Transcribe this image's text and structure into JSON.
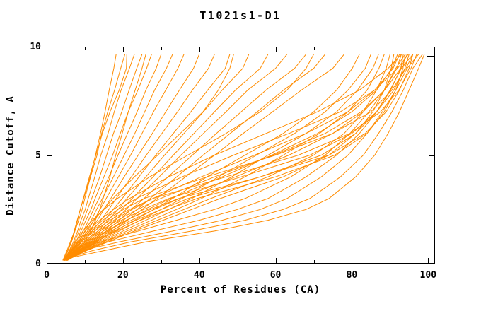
{
  "chart_data": {
    "type": "line",
    "title": "T1021s1-D1",
    "grid": false,
    "background": "#ffffff",
    "colors": {
      "curve": "#ff8c00",
      "axis": "#000000",
      "text": "#000000"
    },
    "legend": {
      "visible": true,
      "position": "top-right",
      "entries": []
    },
    "x_axis": {
      "label": "Percent of Residues (CA)",
      "range": [
        0,
        101.8
      ],
      "ticks": [
        0,
        20,
        40,
        60,
        80,
        100
      ],
      "minor_ticks": [
        10,
        30,
        50,
        70,
        90
      ]
    },
    "y_axis": {
      "label": "Distance Cutoff, A",
      "range": [
        0,
        10
      ],
      "ticks": [
        0,
        5,
        10
      ],
      "minor_ticks": [
        1,
        2,
        3,
        4,
        6,
        7,
        8,
        9
      ]
    },
    "series_count": 44,
    "y_checkpoints": [
      0.15,
      0.3,
      0.6,
      1,
      1.5,
      2,
      2.5,
      3,
      4,
      5,
      6,
      7,
      8,
      9,
      9.65
    ],
    "curves": [
      [
        4.2,
        4.6,
        5.3,
        6.2,
        7.3,
        8.1,
        8.8,
        9.7,
        11.4,
        12.8,
        14.1,
        15.3,
        16.4,
        17.6,
        18.2
      ],
      [
        4.3,
        4.8,
        5.6,
        6.5,
        7.4,
        8.4,
        9.3,
        10.0,
        11.5,
        13.2,
        14.4,
        16.0,
        17.8,
        19.4,
        20.5
      ],
      [
        4.4,
        5.0,
        5.9,
        7.0,
        8.1,
        9.0,
        10.1,
        10.9,
        12.6,
        14.2,
        16.1,
        17.7,
        19.5,
        21.7,
        23.0
      ],
      [
        4.5,
        5.1,
        6.1,
        7.3,
        8.5,
        9.7,
        10.7,
        11.8,
        13.9,
        15.7,
        17.5,
        19.7,
        21.6,
        23.6,
        25.0
      ],
      [
        4.5,
        5.2,
        6.3,
        7.7,
        9.0,
        10.3,
        11.6,
        12.7,
        15.0,
        17.3,
        19.3,
        21.4,
        23.9,
        26.2,
        27.5
      ],
      [
        4.6,
        5.3,
        6.5,
        8.0,
        9.6,
        11.0,
        12.3,
        13.7,
        16.3,
        18.7,
        21.2,
        23.7,
        26.0,
        28.7,
        30.0
      ],
      [
        4.6,
        5.4,
        6.7,
        8.4,
        10.0,
        11.7,
        13.1,
        14.6,
        17.5,
        20.3,
        23.1,
        25.7,
        28.3,
        31.4,
        33.0
      ],
      [
        5.0,
        6.2,
        8.0,
        10.1,
        11.5,
        12.8,
        13.9,
        14.8,
        16.6,
        18.1,
        19.8,
        21.4,
        23.2,
        25.0,
        26.0
      ],
      [
        4.3,
        4.8,
        5.5,
        6.4,
        7.2,
        8.0,
        8.8,
        9.6,
        11.2,
        12.9,
        14.6,
        16.6,
        19.0,
        20.9,
        21.0
      ],
      [
        4.7,
        5.5,
        7.0,
        8.8,
        10.7,
        12.4,
        14.0,
        15.6,
        18.8,
        22.0,
        25.0,
        28.0,
        31.2,
        34.4,
        36.0
      ],
      [
        4.8,
        5.6,
        7.2,
        9.2,
        11.2,
        13.3,
        15.0,
        16.8,
        20.3,
        24.0,
        27.7,
        31.2,
        34.8,
        38.5,
        40.0
      ],
      [
        4.8,
        5.7,
        7.5,
        9.7,
        12.0,
        14.2,
        16.3,
        18.2,
        22.2,
        26.1,
        30.2,
        34.3,
        38.2,
        42.4,
        44.0
      ],
      [
        4.9,
        5.8,
        7.7,
        10.2,
        12.7,
        15.2,
        17.4,
        19.8,
        24.2,
        28.6,
        33.2,
        37.8,
        42.2,
        46.8,
        48.0
      ],
      [
        5.0,
        6.0,
        8.0,
        10.7,
        13.4,
        16.1,
        18.7,
        21.0,
        26.0,
        30.9,
        36.0,
        41.1,
        46.0,
        51.4,
        53.0
      ],
      [
        5.0,
        6.1,
        8.3,
        11.2,
        14.1,
        17.0,
        19.7,
        22.4,
        27.9,
        33.2,
        38.6,
        44.0,
        49.5,
        56.0,
        58.0
      ],
      [
        4.6,
        5.2,
        6.4,
        8.2,
        10.2,
        12.4,
        14.8,
        17.4,
        23.0,
        29.1,
        35.0,
        41.0,
        45.0,
        48.0,
        49.0
      ],
      [
        5.1,
        6.2,
        8.6,
        11.7,
        14.8,
        18.0,
        20.8,
        23.7,
        29.5,
        35.2,
        41.1,
        47.0,
        52.7,
        60.0,
        63.0
      ],
      [
        5.1,
        6.3,
        8.8,
        12.2,
        15.6,
        19.0,
        22.2,
        25.5,
        31.8,
        38.2,
        44.5,
        51.0,
        57.5,
        65.0,
        68.0
      ],
      [
        5.2,
        6.4,
        9.0,
        12.7,
        16.4,
        20.1,
        23.7,
        27.1,
        34.1,
        41.0,
        48.1,
        55.2,
        62.1,
        70.0,
        73.0
      ],
      [
        5.2,
        6.5,
        9.2,
        13.2,
        17.2,
        21.2,
        25.0,
        28.9,
        36.4,
        44.0,
        51.5,
        59.2,
        66.8,
        75.0,
        78.0
      ],
      [
        4.5,
        5.0,
        6.0,
        7.5,
        9.5,
        12.0,
        15.0,
        18.5,
        27.0,
        37.0,
        47.0,
        56.0,
        63.0,
        68.0,
        70.0
      ],
      [
        5.2,
        6.4,
        9.0,
        13.0,
        18.0,
        23.0,
        28.1,
        33.0,
        42.0,
        52.0,
        62.0,
        70.0,
        76.0,
        80.1,
        82.0
      ],
      [
        5.2,
        6.5,
        9.3,
        13.6,
        19.0,
        24.5,
        30.0,
        35.5,
        45.0,
        55.0,
        65.0,
        73.0,
        79.0,
        83.5,
        85.0
      ],
      [
        5.3,
        6.6,
        9.6,
        14.2,
        20.0,
        26.0,
        32.0,
        38.0,
        48.5,
        58.0,
        68.0,
        76.0,
        81.5,
        85.5,
        87.0
      ],
      [
        5.3,
        6.7,
        9.9,
        14.8,
        21.0,
        27.5,
        34.0,
        40.5,
        52.0,
        62.0,
        71.5,
        79.0,
        84.0,
        87.1,
        88.5
      ],
      [
        5.4,
        6.8,
        10.2,
        15.4,
        22.0,
        29.0,
        36.0,
        43.0,
        58.0,
        70.0,
        78.0,
        83.0,
        86.5,
        89.0,
        90.0
      ],
      [
        5.4,
        6.9,
        10.5,
        16.0,
        23.0,
        30.5,
        38.0,
        45.5,
        62.0,
        74.0,
        81.0,
        85.5,
        88.5,
        90.3,
        91.0
      ],
      [
        5.0,
        6.0,
        8.2,
        11.5,
        16.0,
        21.0,
        26.5,
        32.5,
        46.0,
        59.0,
        71.0,
        80.0,
        86.5,
        90.5,
        92.0
      ],
      [
        5.0,
        6.1,
        8.4,
        11.9,
        16.8,
        22.2,
        28.2,
        34.8,
        49.5,
        63.5,
        75.0,
        83.0,
        88.5,
        91.8,
        93.0
      ],
      [
        5.1,
        6.2,
        8.6,
        12.3,
        17.6,
        23.4,
        30.0,
        37.1,
        56.0,
        72.0,
        81.0,
        86.5,
        90.2,
        92.8,
        93.5
      ],
      [
        5.1,
        6.3,
        8.8,
        12.7,
        18.4,
        24.6,
        31.8,
        39.4,
        60.0,
        75.5,
        84.0,
        88.5,
        91.5,
        93.4,
        94.0
      ],
      [
        4.7,
        5.5,
        7.2,
        9.8,
        13.4,
        17.6,
        22.4,
        27.8,
        40.5,
        54.5,
        68.0,
        79.0,
        86.0,
        90.8,
        92.5
      ],
      [
        4.7,
        5.6,
        7.4,
        10.2,
        14.0,
        18.6,
        23.8,
        29.8,
        44.0,
        59.5,
        73.0,
        82.5,
        88.6,
        92.8,
        94.5
      ],
      [
        4.8,
        5.7,
        7.6,
        10.6,
        14.8,
        19.6,
        25.4,
        32.0,
        51.0,
        69.0,
        80.0,
        86.5,
        91.0,
        93.9,
        95.0
      ],
      [
        4.8,
        5.8,
        7.8,
        11.0,
        15.6,
        20.8,
        27.2,
        34.6,
        56.0,
        74.0,
        83.5,
        89.0,
        92.5,
        95.0,
        96.0
      ],
      [
        4.5,
        5.1,
        6.3,
        8.2,
        10.8,
        13.9,
        17.5,
        21.7,
        32.0,
        44.0,
        57.5,
        71.0,
        82.0,
        89.5,
        93.0
      ],
      [
        4.5,
        5.2,
        6.4,
        8.5,
        11.3,
        14.7,
        18.7,
        23.5,
        35.5,
        49.0,
        63.5,
        77.0,
        86.0,
        92.0,
        94.8
      ],
      [
        4.6,
        5.2,
        6.6,
        8.8,
        11.9,
        15.6,
        20.1,
        25.5,
        42.0,
        60.0,
        75.0,
        85.0,
        90.5,
        94.2,
        96.0
      ],
      [
        4.6,
        5.3,
        6.8,
        9.1,
        12.5,
        16.6,
        21.7,
        27.8,
        47.0,
        66.0,
        79.5,
        87.5,
        92.3,
        95.5,
        97.0
      ],
      [
        4.3,
        5.0,
        7.5,
        14.0,
        24.0,
        34.0,
        44.0,
        52.0,
        64.0,
        73.0,
        79.5,
        84.5,
        88.5,
        91.5,
        94.0
      ],
      [
        4.4,
        5.2,
        8.0,
        16.0,
        28.0,
        40.0,
        50.0,
        58.0,
        68.0,
        76.0,
        82.0,
        86.5,
        90.0,
        93.0,
        96.0
      ],
      [
        4.5,
        5.4,
        9.0,
        19.0,
        33.0,
        46.0,
        56.0,
        63.0,
        72.0,
        79.0,
        84.0,
        88.0,
        91.5,
        94.5,
        97.5
      ],
      [
        4.6,
        6.5,
        12.0,
        22.0,
        38.0,
        52.0,
        62.0,
        69.0,
        77.0,
        83.0,
        87.0,
        90.5,
        93.5,
        96.0,
        98.5
      ],
      [
        4.7,
        7.0,
        15.0,
        26.0,
        44.0,
        58.0,
        68.0,
        74.0,
        81.0,
        86.0,
        89.5,
        92.5,
        95.0,
        97.5,
        99.0
      ]
    ]
  }
}
